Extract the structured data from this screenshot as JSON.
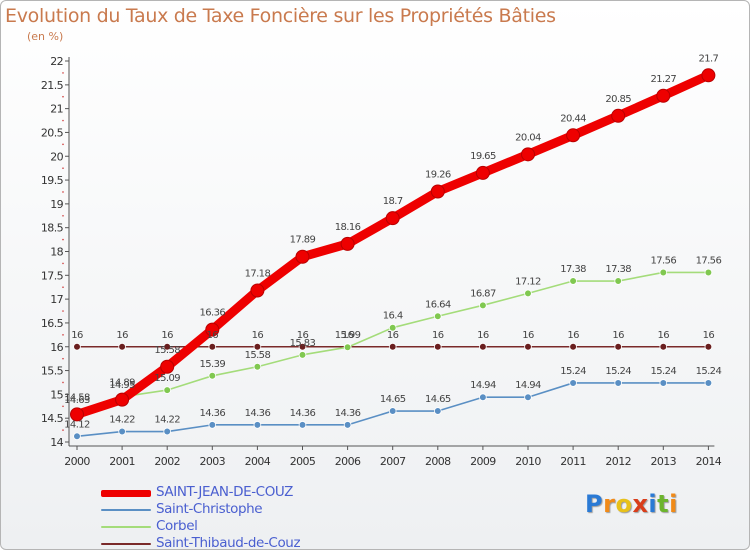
{
  "title": "Evolution du Taux de Taxe Foncière sur les Propriétés Bâties",
  "unit": "(en %)",
  "logo": {
    "text": "Proxiti",
    "letters": [
      {
        "ch": "P",
        "color": "#2a7ad5"
      },
      {
        "ch": "r",
        "color": "#f08a18"
      },
      {
        "ch": "o",
        "color": "#e8c11a"
      },
      {
        "ch": "x",
        "color": "#d93d1a"
      },
      {
        "ch": "i",
        "color": "#2a7ad5"
      },
      {
        "ch": "t",
        "color": "#6cb52d"
      },
      {
        "ch": "i",
        "color": "#f08a18"
      }
    ]
  },
  "chart_data": {
    "type": "line",
    "title": "Evolution du Taux de Taxe Foncière sur les Propriétés Bâties",
    "ylabel": "(en %)",
    "xlabel": "",
    "x": [
      "2000",
      "2001",
      "2002",
      "2003",
      "2004",
      "2005",
      "2006",
      "2007",
      "2008",
      "2009",
      "2010",
      "2011",
      "2012",
      "2013",
      "2014"
    ],
    "ylim": [
      14,
      22
    ],
    "yticks": [
      "14",
      "14.5",
      "15",
      "15.5",
      "16",
      "16.5",
      "17",
      "17.5",
      "18",
      "18.5",
      "19",
      "19.5",
      "20",
      "20.5",
      "21",
      "21.5",
      "22"
    ],
    "grid": false,
    "legend_position": "bottom-left",
    "series": [
      {
        "name": "SAINT-JEAN-DE-COUZ",
        "color": "#ee0000",
        "marker": "#ee0000",
        "emphasis": true,
        "values": [
          14.58,
          14.89,
          15.58,
          16.36,
          17.18,
          17.89,
          18.16,
          18.7,
          19.26,
          19.65,
          20.04,
          20.44,
          20.85,
          21.27,
          21.7
        ],
        "labels": [
          "14.58",
          "14.89",
          "15.58",
          "16.36",
          "17.18",
          "17.89",
          "18.16",
          "18.7",
          "19.26",
          "19.65",
          "20.04",
          "20.44",
          "20.85",
          "21.27",
          "21.7"
        ]
      },
      {
        "name": "Saint-Christophe",
        "color": "#5a8fc4",
        "marker": "#5a8fc4",
        "emphasis": false,
        "values": [
          14.12,
          14.22,
          14.22,
          14.36,
          14.36,
          14.36,
          14.36,
          14.65,
          14.65,
          14.94,
          14.94,
          15.24,
          15.24,
          15.24,
          15.24
        ],
        "labels": [
          "14.12",
          "14.22",
          "14.22",
          "14.36",
          "14.36",
          "14.36",
          "14.36",
          "14.65",
          "14.65",
          "14.94",
          "14.94",
          "15.24",
          "15.24",
          "15.24",
          "15.24"
        ]
      },
      {
        "name": "Corbel",
        "color": "#a4dc7a",
        "marker": "#80c850",
        "emphasis": false,
        "values": [
          14.63,
          14.95,
          15.09,
          15.39,
          15.58,
          15.83,
          15.99,
          16.4,
          16.64,
          16.87,
          17.12,
          17.38,
          17.38,
          17.56,
          17.56
        ],
        "labels": [
          "14.63",
          "14.95",
          "15.09",
          "15.39",
          "15.58",
          "15.83",
          "15.99",
          "16.4",
          "16.64",
          "16.87",
          "17.12",
          "17.38",
          "17.38",
          "17.56",
          "17.56"
        ]
      },
      {
        "name": "Saint-Thibaud-de-Couz",
        "color": "#7a2a2a",
        "marker": "#6a1f1f",
        "emphasis": false,
        "values": [
          16,
          16,
          16,
          16,
          16,
          16,
          16,
          16,
          16,
          16,
          16,
          16,
          16,
          16,
          16
        ],
        "labels": [
          "16",
          "16",
          "16",
          "16",
          "16",
          "16",
          "16",
          "16",
          "16",
          "16",
          "16",
          "16",
          "16",
          "16",
          "16"
        ]
      }
    ]
  }
}
